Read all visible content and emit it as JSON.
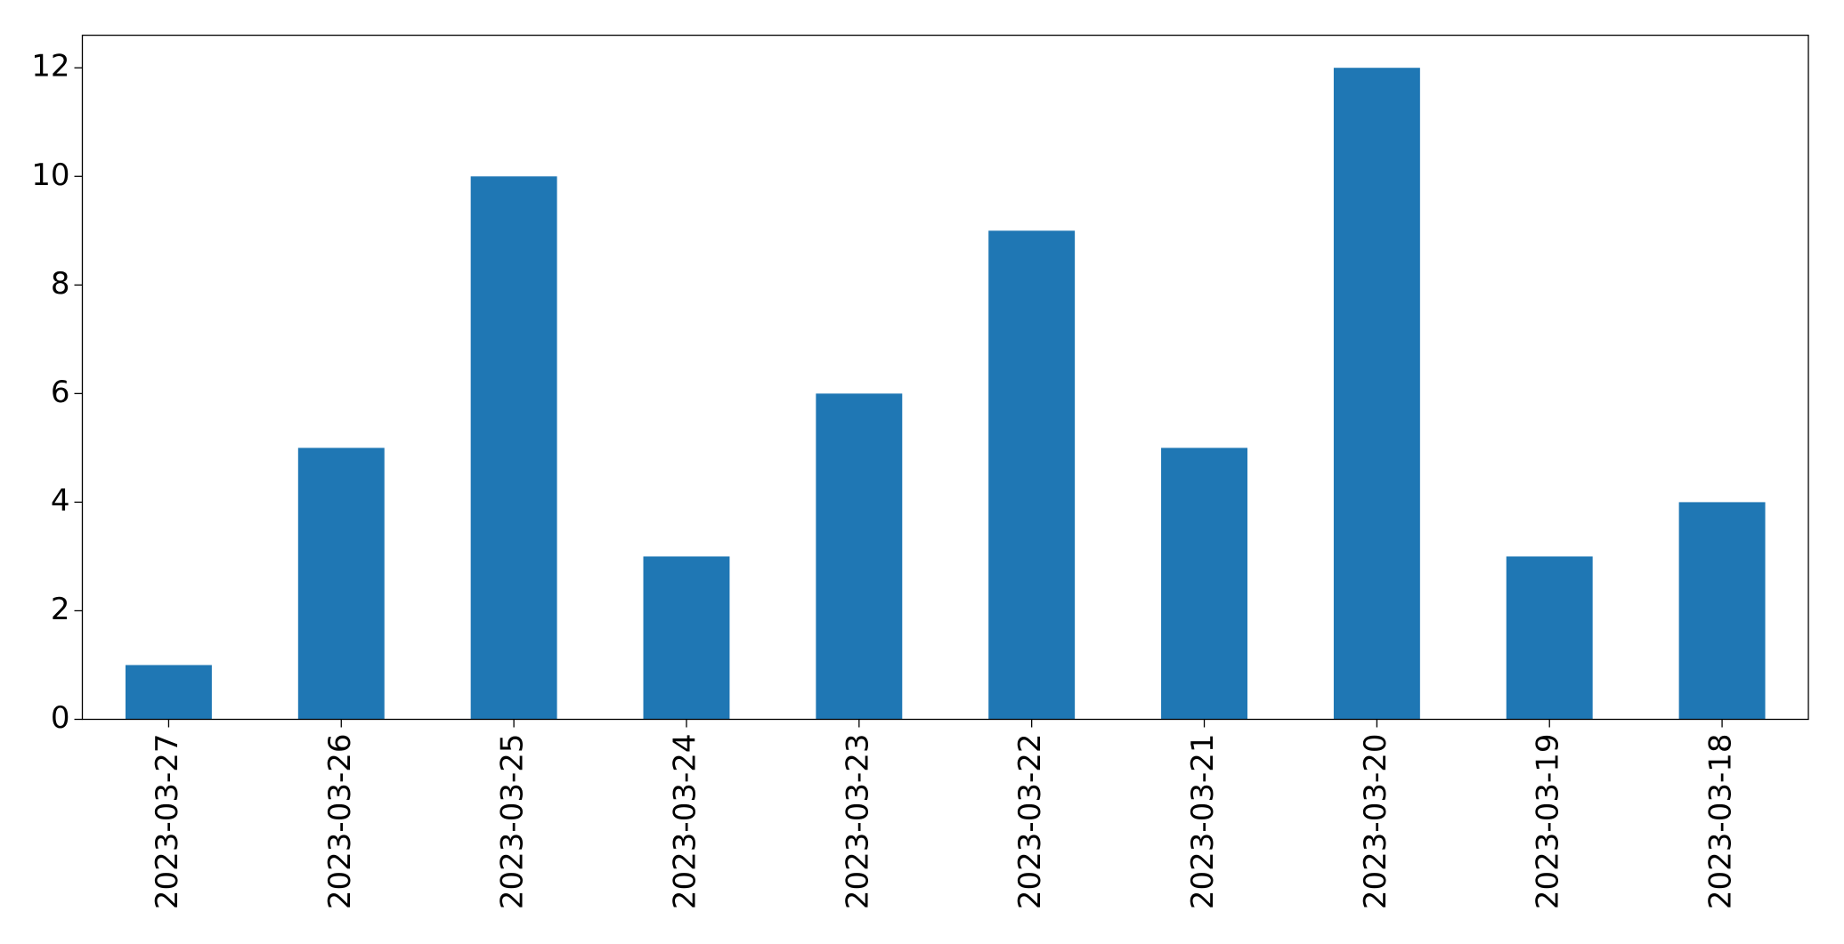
{
  "chart_data": {
    "type": "bar",
    "categories": [
      "2023-03-27",
      "2023-03-26",
      "2023-03-25",
      "2023-03-24",
      "2023-03-23",
      "2023-03-22",
      "2023-03-21",
      "2023-03-20",
      "2023-03-19",
      "2023-03-18"
    ],
    "values": [
      1,
      5,
      10,
      3,
      6,
      9,
      5,
      12,
      3,
      4
    ],
    "color": "#1f77b4",
    "ylim": [
      0,
      12.6
    ],
    "yticks": [
      0,
      2,
      4,
      6,
      8,
      10,
      12
    ],
    "grid": false
  }
}
